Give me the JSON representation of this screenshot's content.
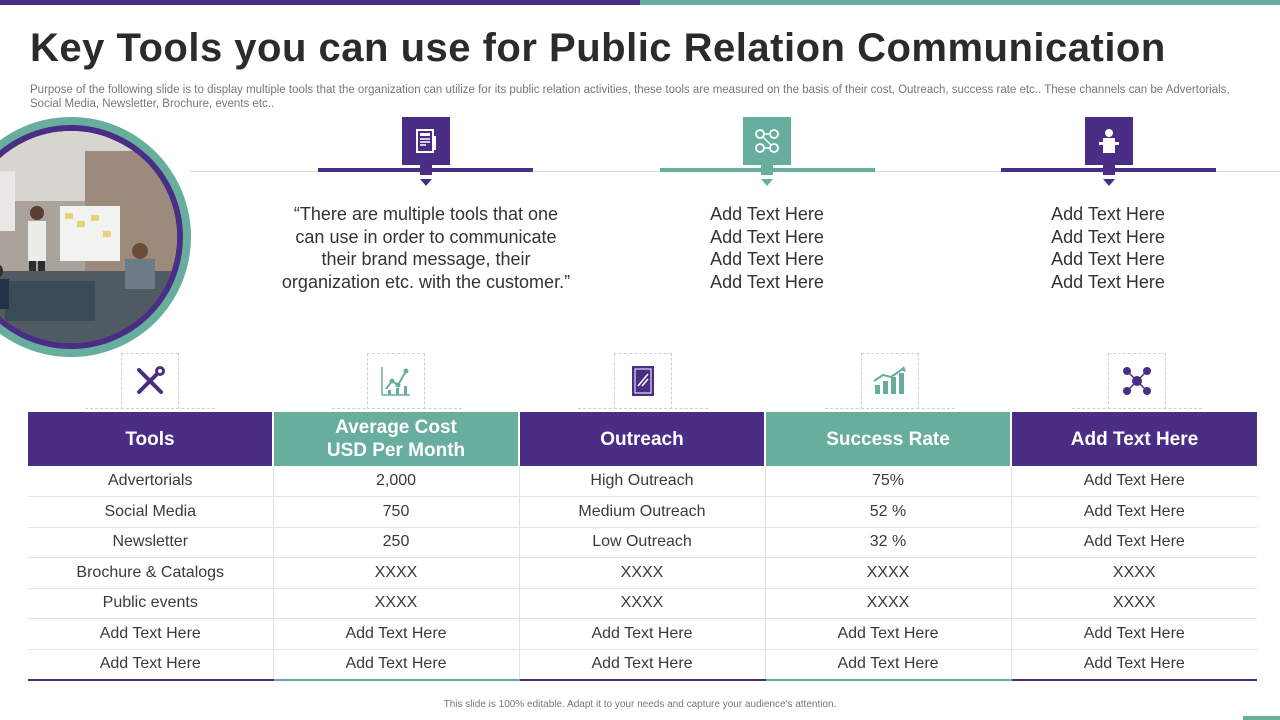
{
  "colors": {
    "purple": "#4a2d84",
    "teal": "#67ae9f"
  },
  "header": {
    "title": "Key Tools you can use for Public Relation Communication",
    "subtitle": "Purpose of the following slide is to display multiple tools that the organization can utilize for its public relation activities, these tools are measured on the basis of their cost, Outreach, success rate etc.. These channels can be Advertorials, Social Media, Newsletter, Brochure, events etc.."
  },
  "columns": [
    {
      "icon": "newspaper-icon",
      "color": "purple",
      "lines": [
        "“There are multiple tools that one",
        "can use in order to communicate",
        "their brand message, their",
        "organization etc. with the customer.”"
      ]
    },
    {
      "icon": "team-network-icon",
      "color": "teal",
      "lines": [
        "Add Text Here",
        "Add Text Here",
        "Add Text Here",
        "Add Text Here"
      ]
    },
    {
      "icon": "presenter-podium-icon",
      "color": "purple",
      "lines": [
        "Add Text Here",
        "Add Text Here",
        "Add Text Here",
        "Add Text Here"
      ]
    }
  ],
  "table_icons": [
    "tools-icon",
    "analytics-chart-icon",
    "document-icon",
    "growth-chart-icon",
    "network-people-icon"
  ],
  "table": {
    "headers": [
      {
        "line1": "Tools",
        "line2": ""
      },
      {
        "line1": "Average Cost",
        "line2": "USD Per Month"
      },
      {
        "line1": "Outreach",
        "line2": ""
      },
      {
        "line1": "Success Rate",
        "line2": ""
      },
      {
        "line1": "Add Text Here",
        "line2": ""
      }
    ],
    "rows": [
      [
        "Advertorials",
        "2,000",
        "High Outreach",
        "75%",
        "Add Text Here"
      ],
      [
        "Social Media",
        "750",
        "Medium Outreach",
        "52 %",
        "Add Text Here"
      ],
      [
        "Newsletter",
        "250",
        "Low Outreach",
        "32 %",
        "Add Text Here"
      ],
      [
        "Brochure & Catalogs",
        "XXXX",
        "XXXX",
        "XXXX",
        "XXXX"
      ],
      [
        "Public events",
        "XXXX",
        "XXXX",
        "XXXX",
        "XXXX"
      ],
      [
        "Add Text Here",
        "Add Text Here",
        "Add Text Here",
        "Add Text Here",
        "Add Text Here"
      ],
      [
        "Add Text Here",
        "Add Text Here",
        "Add Text Here",
        "Add Text Here",
        "Add Text Here"
      ]
    ]
  },
  "footer": {
    "text": "This slide is 100% editable. Adapt it to your needs and capture your audience's attention."
  }
}
